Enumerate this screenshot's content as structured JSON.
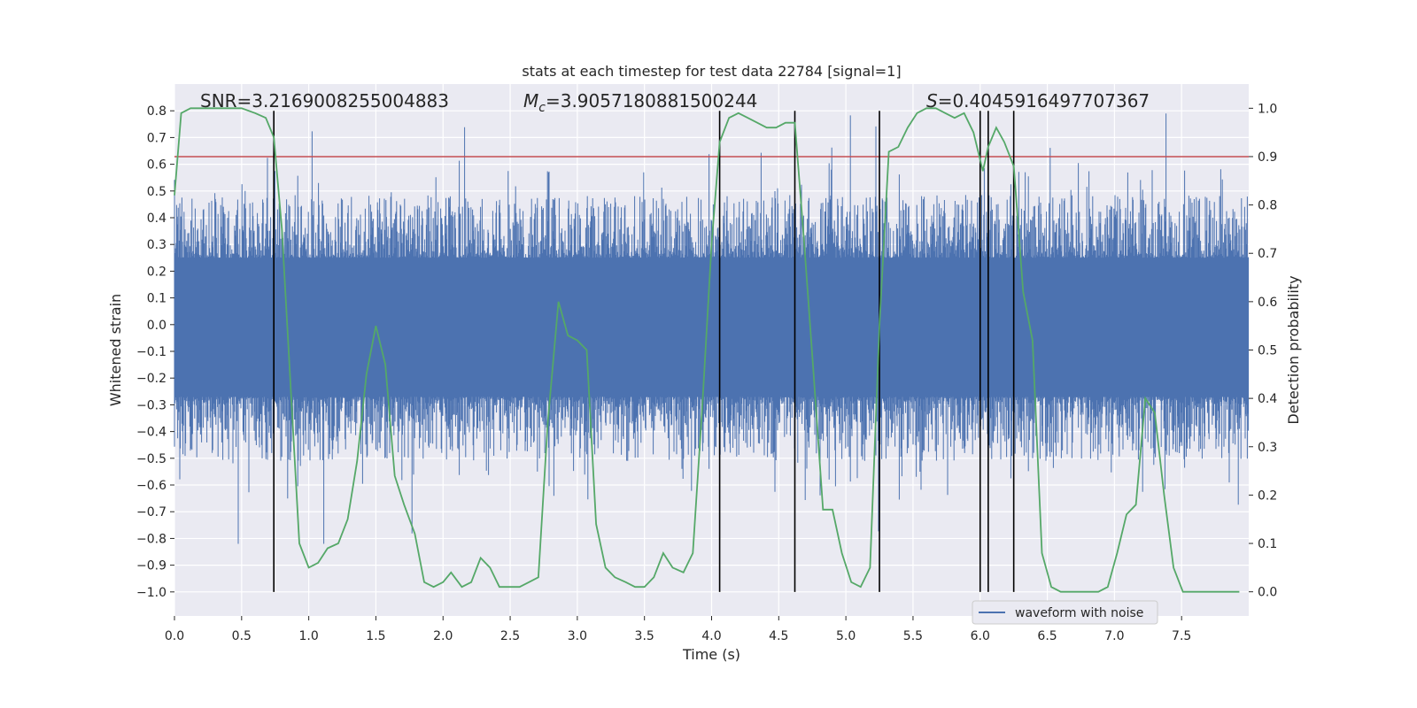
{
  "chart_data": {
    "type": "line",
    "title": "stats at each timestep for test data 22784 [signal=1]",
    "xlabel": "Time (s)",
    "ylabel": "Whitened strain",
    "y2label": "Detection probability",
    "xlim": [
      0.0,
      8.0
    ],
    "ylim": [
      -1.09,
      0.9
    ],
    "y2lim": [
      -0.05,
      1.05
    ],
    "xticks": [
      "0.0",
      "0.5",
      "1.0",
      "1.5",
      "2.0",
      "2.5",
      "3.0",
      "3.5",
      "4.0",
      "4.5",
      "5.0",
      "5.5",
      "6.0",
      "6.5",
      "7.0",
      "7.5"
    ],
    "yticks": [
      "0.8",
      "0.7",
      "0.6",
      "0.5",
      "0.4",
      "0.3",
      "0.2",
      "0.1",
      "0.0",
      "−0.1",
      "−0.2",
      "−0.3",
      "−0.4",
      "−0.5",
      "−0.6",
      "−0.7",
      "−0.8",
      "−0.9",
      "−1.0"
    ],
    "y2ticks": [
      "1.0",
      "0.9",
      "0.8",
      "0.7",
      "0.6",
      "0.5",
      "0.4",
      "0.3",
      "0.2",
      "0.1",
      "0.0"
    ],
    "grid": true,
    "legend_position": "lower-right",
    "annotations": {
      "snr": "SNR=3.2169008255004883",
      "mc": "M",
      "mc_sub": "c",
      "mc_value": "=3.9057180881500244",
      "s": "S",
      "s_value": "=0.4045916497707367"
    },
    "threshold": {
      "value": 0.9,
      "axis": "y2",
      "color": "#c44e52"
    },
    "vlines_x": [
      0.74,
      4.06,
      4.62,
      5.25,
      6.0,
      6.06,
      6.25
    ],
    "vline_range": [
      -1.0,
      0.8
    ],
    "series": [
      {
        "name": "waveform with noise",
        "axis": "y",
        "color": "#4c72b0",
        "envelope": {
          "band_low": -0.27,
          "band_high": 0.25,
          "peak_low": -0.75,
          "peak_high": 0.72
        }
      },
      {
        "axis": "y2",
        "color": "#55a868",
        "x": [
          0.0,
          0.05,
          0.12,
          0.2,
          0.3,
          0.4,
          0.5,
          0.6,
          0.68,
          0.74,
          0.8,
          0.86,
          0.93,
          1.0,
          1.07,
          1.14,
          1.22,
          1.29,
          1.36,
          1.43,
          1.5,
          1.57,
          1.64,
          1.71,
          1.79,
          1.86,
          1.93,
          2.0,
          2.06,
          2.14,
          2.21,
          2.28,
          2.35,
          2.42,
          2.5,
          2.57,
          2.64,
          2.71,
          2.78,
          2.86,
          2.93,
          3.0,
          3.07,
          3.14,
          3.21,
          3.28,
          3.36,
          3.43,
          3.5,
          3.57,
          3.64,
          3.71,
          3.79,
          3.86,
          3.93,
          4.0,
          4.06,
          4.13,
          4.2,
          4.27,
          4.34,
          4.41,
          4.48,
          4.55,
          4.62,
          4.69,
          4.76,
          4.83,
          4.9,
          4.97,
          5.04,
          5.11,
          5.18,
          5.25,
          5.32,
          5.39,
          5.46,
          5.53,
          5.6,
          5.67,
          5.74,
          5.81,
          5.88,
          5.95,
          6.02,
          6.06,
          6.12,
          6.18,
          6.25,
          6.32,
          6.39,
          6.46,
          6.53,
          6.6,
          6.67,
          6.74,
          6.81,
          6.88,
          6.95,
          7.02,
          7.09,
          7.16,
          7.23,
          7.3,
          7.37,
          7.44,
          7.51,
          7.58,
          7.65,
          7.72,
          7.79,
          7.86,
          7.93
        ],
        "values": [
          0.82,
          0.99,
          1.0,
          1.0,
          1.0,
          1.0,
          1.0,
          0.99,
          0.98,
          0.94,
          0.75,
          0.45,
          0.1,
          0.05,
          0.06,
          0.09,
          0.1,
          0.15,
          0.27,
          0.45,
          0.55,
          0.47,
          0.24,
          0.18,
          0.12,
          0.02,
          0.01,
          0.02,
          0.04,
          0.01,
          0.02,
          0.07,
          0.05,
          0.01,
          0.01,
          0.01,
          0.02,
          0.03,
          0.35,
          0.6,
          0.53,
          0.52,
          0.5,
          0.14,
          0.05,
          0.03,
          0.02,
          0.01,
          0.01,
          0.03,
          0.08,
          0.05,
          0.04,
          0.08,
          0.38,
          0.72,
          0.93,
          0.98,
          0.99,
          0.98,
          0.97,
          0.96,
          0.96,
          0.97,
          0.97,
          0.72,
          0.45,
          0.17,
          0.17,
          0.08,
          0.02,
          0.01,
          0.05,
          0.55,
          0.91,
          0.92,
          0.96,
          0.99,
          1.0,
          1.0,
          0.99,
          0.98,
          0.99,
          0.95,
          0.87,
          0.92,
          0.96,
          0.93,
          0.88,
          0.62,
          0.52,
          0.08,
          0.01,
          0.0,
          0.0,
          0.0,
          0.0,
          0.0,
          0.01,
          0.08,
          0.16,
          0.18,
          0.4,
          0.37,
          0.2,
          0.05,
          0.0,
          0.0,
          0.0,
          0.0,
          0.0,
          0.0,
          0.0
        ]
      }
    ]
  }
}
